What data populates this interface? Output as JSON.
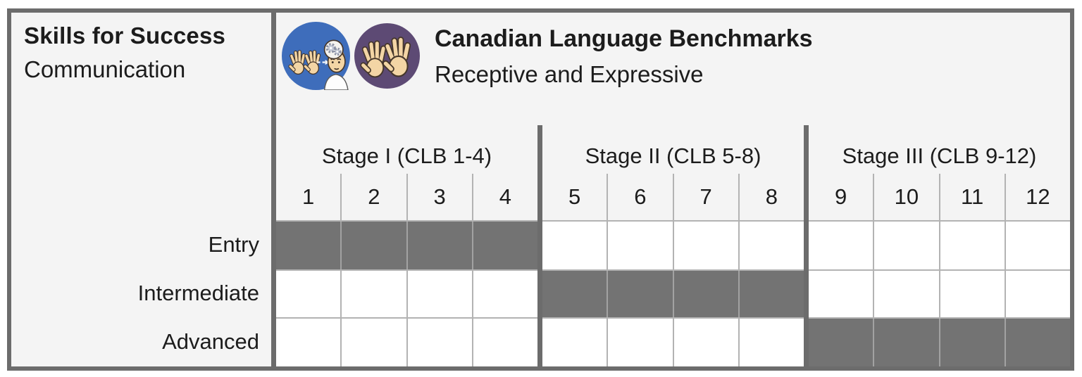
{
  "left_panel": {
    "title": "Skills for Success",
    "subtitle": "Communication",
    "row_labels": [
      "Entry",
      "Intermediate",
      "Advanced"
    ]
  },
  "header": {
    "title": "Canadian Language Benchmarks",
    "subtitle": "Receptive and Expressive",
    "icons": [
      {
        "name": "receptive-signing-icon",
        "description": "signing hands with person processing (gears in open head)",
        "background": "#3e6dbb"
      },
      {
        "name": "expressive-signing-icon",
        "description": "two signing hands",
        "background": "#5d4a74"
      }
    ]
  },
  "stages": [
    {
      "label": "Stage I (CLB 1-4)",
      "columns": [
        "1",
        "2",
        "3",
        "4"
      ]
    },
    {
      "label": "Stage II (CLB 5-8)",
      "columns": [
        "5",
        "6",
        "7",
        "8"
      ]
    },
    {
      "label": "Stage III (CLB 9-12)",
      "columns": [
        "9",
        "10",
        "11",
        "12"
      ]
    }
  ],
  "grid": {
    "rows": [
      {
        "label": "Entry",
        "filled_columns": [
          1,
          2,
          3,
          4
        ]
      },
      {
        "label": "Intermediate",
        "filled_columns": [
          5,
          6,
          7,
          8
        ]
      },
      {
        "label": "Advanced",
        "filled_columns": [
          9,
          10,
          11,
          12
        ]
      }
    ]
  },
  "colors": {
    "frame": "#6c6c6c",
    "background": "#f4f4f4",
    "grid_line": "#b3b3b3",
    "filled_cell": "#737373",
    "empty_cell": "#ffffff",
    "icon_blue": "#3e6dbb",
    "icon_purple": "#5d4a74"
  }
}
